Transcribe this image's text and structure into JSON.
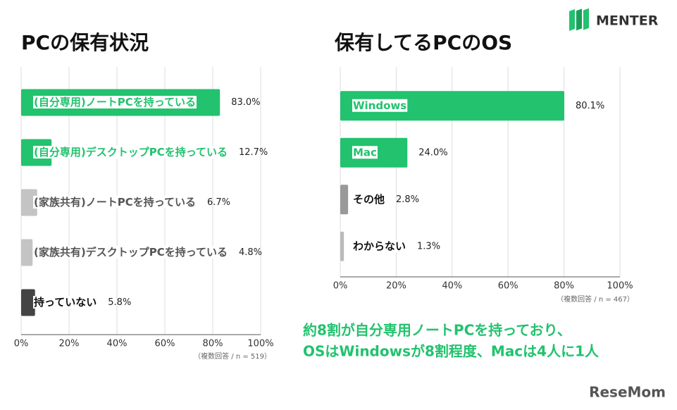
{
  "chart_data": [
    {
      "type": "bar",
      "orientation": "horizontal",
      "title": "PCの保有状況",
      "categories": [
        "(自分専用)ノートPCを持っている",
        "(自分専用)デスクトップPCを持っている",
        "(家族共有)ノートPCを持っている",
        "(家族共有)デスクトップPCを持っている",
        "持っていない"
      ],
      "values": [
        83.0,
        12.7,
        6.7,
        4.8,
        5.8
      ],
      "value_labels": [
        "83.0%",
        "12.7%",
        "6.7%",
        "4.8%",
        "5.8%"
      ],
      "colors": [
        "#22c26e",
        "#22c26e",
        "#c4c4c4",
        "#c4c4c4",
        "#444444"
      ],
      "label_colors": [
        "#22c26e",
        "#22c26e",
        "#555555",
        "#555555",
        "#111111"
      ],
      "xlim": [
        0,
        100
      ],
      "xticks": [
        {
          "value": 0,
          "label": "0%"
        },
        {
          "value": 20,
          "label": "20%"
        },
        {
          "value": 40,
          "label": "40%"
        },
        {
          "value": 60,
          "label": "60%"
        },
        {
          "value": 80,
          "label": "80%"
        },
        {
          "value": 100,
          "label": "100%"
        }
      ],
      "grid": true,
      "note": "（複数回答 / n = 519）"
    },
    {
      "type": "bar",
      "orientation": "horizontal",
      "title": "保有してるPCのOS",
      "categories": [
        "Windows",
        "Mac",
        "その他",
        "わからない"
      ],
      "values": [
        80.1,
        24.0,
        2.8,
        1.3
      ],
      "value_labels": [
        "80.1%",
        "24.0%",
        "2.8%",
        "1.3%"
      ],
      "colors": [
        "#22c26e",
        "#22c26e",
        "#999999",
        "#bbbbbb"
      ],
      "label_colors": [
        "#22c26e",
        "#22c26e",
        "#111111",
        "#111111"
      ],
      "xlim": [
        0,
        100
      ],
      "xticks": [
        {
          "value": 0,
          "label": "0%"
        },
        {
          "value": 20,
          "label": "20%"
        },
        {
          "value": 40,
          "label": "40%"
        },
        {
          "value": 60,
          "label": "60%"
        },
        {
          "value": 80,
          "label": "80%"
        },
        {
          "value": 100,
          "label": "100%"
        }
      ],
      "grid": true,
      "note": "（複数回答 / n = 467）"
    }
  ],
  "annotation": [
    "約8割が自分専用ノートPCを持っており、",
    "OSはWindowsが8割程度、Macは4人に1人"
  ],
  "brand": "MENTER",
  "watermark": "ReseMom"
}
